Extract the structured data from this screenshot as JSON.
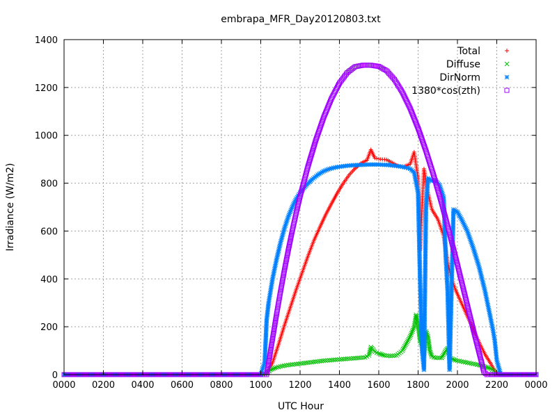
{
  "chart_data": {
    "type": "scatter",
    "title": "embrapa_MFR_Day20120803.txt",
    "xlabel": "UTC Hour",
    "ylabel": "Irradiance (W/m2)",
    "xlim": [
      0,
      24
    ],
    "ylim": [
      0,
      1400
    ],
    "x_ticks": [
      {
        "value": 0,
        "label": "0000"
      },
      {
        "value": 2,
        "label": "0200"
      },
      {
        "value": 4,
        "label": "0400"
      },
      {
        "value": 6,
        "label": "0600"
      },
      {
        "value": 8,
        "label": "0800"
      },
      {
        "value": 10,
        "label": "1000"
      },
      {
        "value": 12,
        "label": "1200"
      },
      {
        "value": 14,
        "label": "1400"
      },
      {
        "value": 16,
        "label": "1600"
      },
      {
        "value": 18,
        "label": "1800"
      },
      {
        "value": 20,
        "label": "2000"
      },
      {
        "value": 22,
        "label": "2200"
      },
      {
        "value": 24,
        "label": "0000"
      }
    ],
    "y_ticks": [
      {
        "value": 0,
        "label": "0"
      },
      {
        "value": 200,
        "label": "200"
      },
      {
        "value": 400,
        "label": "400"
      },
      {
        "value": 600,
        "label": "600"
      },
      {
        "value": 800,
        "label": "800"
      },
      {
        "value": 1000,
        "label": "1000"
      },
      {
        "value": 1200,
        "label": "1200"
      },
      {
        "value": 1400,
        "label": "1400"
      }
    ],
    "grid": true,
    "legend_position": "top-right",
    "series": [
      {
        "name": "Total",
        "marker": "plus",
        "color": "#ff0000",
        "points": [
          [
            0,
            0
          ],
          [
            2,
            0
          ],
          [
            4,
            0
          ],
          [
            6,
            0
          ],
          [
            8,
            0
          ],
          [
            10,
            0
          ],
          [
            10.3,
            5
          ],
          [
            10.6,
            50
          ],
          [
            10.9,
            125
          ],
          [
            11.2,
            205
          ],
          [
            11.5,
            280
          ],
          [
            11.8,
            355
          ],
          [
            12.1,
            425
          ],
          [
            12.4,
            495
          ],
          [
            12.7,
            560
          ],
          [
            13,
            615
          ],
          [
            13.3,
            668
          ],
          [
            13.6,
            715
          ],
          [
            13.9,
            760
          ],
          [
            14.2,
            800
          ],
          [
            14.5,
            835
          ],
          [
            14.8,
            862
          ],
          [
            15.1,
            883
          ],
          [
            15.4,
            896
          ],
          [
            15.6,
            940
          ],
          [
            15.8,
            905
          ],
          [
            16.1,
            900
          ],
          [
            16.4,
            898
          ],
          [
            16.7,
            885
          ],
          [
            17,
            870
          ],
          [
            17.3,
            870
          ],
          [
            17.6,
            880
          ],
          [
            17.8,
            930
          ],
          [
            18,
            820
          ],
          [
            18.1,
            520
          ],
          [
            18.2,
            700
          ],
          [
            18.3,
            860
          ],
          [
            18.5,
            760
          ],
          [
            18.7,
            690
          ],
          [
            19,
            650
          ],
          [
            19.3,
            580
          ],
          [
            19.5,
            470
          ],
          [
            19.7,
            400
          ],
          [
            19.9,
            355
          ],
          [
            20.2,
            300
          ],
          [
            20.5,
            245
          ],
          [
            20.8,
            190
          ],
          [
            21.1,
            135
          ],
          [
            21.4,
            85
          ],
          [
            21.7,
            45
          ],
          [
            21.9,
            15
          ],
          [
            22,
            5
          ],
          [
            22.2,
            0
          ],
          [
            23,
            0
          ],
          [
            24,
            0
          ]
        ]
      },
      {
        "name": "Diffuse",
        "marker": "cross",
        "color": "#00c000",
        "points": [
          [
            0,
            0
          ],
          [
            2,
            0
          ],
          [
            4,
            0
          ],
          [
            6,
            0
          ],
          [
            8,
            0
          ],
          [
            10,
            0
          ],
          [
            10.3,
            5
          ],
          [
            10.5,
            20
          ],
          [
            10.8,
            30
          ],
          [
            11.1,
            36
          ],
          [
            11.4,
            40
          ],
          [
            11.7,
            43
          ],
          [
            12,
            46
          ],
          [
            12.3,
            49
          ],
          [
            12.6,
            52
          ],
          [
            12.9,
            55
          ],
          [
            13.2,
            58
          ],
          [
            13.5,
            60
          ],
          [
            13.8,
            62
          ],
          [
            14.1,
            64
          ],
          [
            14.4,
            66
          ],
          [
            14.7,
            68
          ],
          [
            15,
            70
          ],
          [
            15.3,
            72
          ],
          [
            15.5,
            80
          ],
          [
            15.6,
            115
          ],
          [
            15.8,
            95
          ],
          [
            16,
            88
          ],
          [
            16.3,
            80
          ],
          [
            16.6,
            78
          ],
          [
            16.9,
            80
          ],
          [
            17.2,
            100
          ],
          [
            17.4,
            130
          ],
          [
            17.6,
            160
          ],
          [
            17.8,
            200
          ],
          [
            17.9,
            250
          ],
          [
            18,
            210
          ],
          [
            18.1,
            140
          ],
          [
            18.2,
            120
          ],
          [
            18.3,
            80
          ],
          [
            18.4,
            180
          ],
          [
            18.5,
            160
          ],
          [
            18.6,
            100
          ],
          [
            18.7,
            75
          ],
          [
            18.9,
            70
          ],
          [
            19.2,
            70
          ],
          [
            19.4,
            100
          ],
          [
            19.5,
            110
          ],
          [
            19.6,
            70
          ],
          [
            19.9,
            60
          ],
          [
            20.2,
            55
          ],
          [
            20.5,
            50
          ],
          [
            20.8,
            45
          ],
          [
            21.1,
            40
          ],
          [
            21.4,
            33
          ],
          [
            21.7,
            25
          ],
          [
            21.9,
            12
          ],
          [
            22,
            3
          ],
          [
            22.2,
            0
          ],
          [
            23,
            0
          ],
          [
            24,
            0
          ]
        ]
      },
      {
        "name": "DirNorm",
        "marker": "star",
        "color": "#0080ff",
        "points": [
          [
            0,
            0
          ],
          [
            2,
            0
          ],
          [
            4,
            0
          ],
          [
            6,
            0
          ],
          [
            8,
            0
          ],
          [
            10,
            0
          ],
          [
            10.2,
            50
          ],
          [
            10.3,
            230
          ],
          [
            10.4,
            300
          ],
          [
            10.6,
            400
          ],
          [
            10.8,
            480
          ],
          [
            11,
            550
          ],
          [
            11.2,
            610
          ],
          [
            11.4,
            660
          ],
          [
            11.6,
            700
          ],
          [
            11.8,
            735
          ],
          [
            12,
            760
          ],
          [
            12.3,
            790
          ],
          [
            12.6,
            815
          ],
          [
            12.9,
            835
          ],
          [
            13.2,
            850
          ],
          [
            13.5,
            860
          ],
          [
            13.8,
            866
          ],
          [
            14.1,
            870
          ],
          [
            14.4,
            873
          ],
          [
            14.7,
            875
          ],
          [
            15,
            876
          ],
          [
            15.3,
            877
          ],
          [
            15.6,
            878
          ],
          [
            15.9,
            878
          ],
          [
            16.2,
            877
          ],
          [
            16.5,
            876
          ],
          [
            16.8,
            873
          ],
          [
            17.1,
            870
          ],
          [
            17.4,
            865
          ],
          [
            17.6,
            860
          ],
          [
            17.8,
            845
          ],
          [
            18,
            760
          ],
          [
            18.1,
            400
          ],
          [
            18.2,
            100
          ],
          [
            18.3,
            20
          ],
          [
            18.4,
            690
          ],
          [
            18.5,
            820
          ],
          [
            18.7,
            810
          ],
          [
            18.9,
            810
          ],
          [
            19.1,
            790
          ],
          [
            19.3,
            740
          ],
          [
            19.4,
            500
          ],
          [
            19.5,
            350
          ],
          [
            19.6,
            20
          ],
          [
            19.8,
            690
          ],
          [
            20,
            680
          ],
          [
            20.2,
            650
          ],
          [
            20.5,
            600
          ],
          [
            20.8,
            530
          ],
          [
            21.1,
            450
          ],
          [
            21.4,
            350
          ],
          [
            21.6,
            270
          ],
          [
            21.8,
            190
          ],
          [
            21.9,
            140
          ],
          [
            22,
            60
          ],
          [
            22.2,
            0
          ],
          [
            23,
            0
          ],
          [
            24,
            0
          ]
        ]
      },
      {
        "name": "1380*cos(zth)",
        "marker": "square",
        "color": "#a000ff",
        "points": [
          [
            0,
            0
          ],
          [
            2,
            0
          ],
          [
            4,
            0
          ],
          [
            6,
            0
          ],
          [
            8,
            0
          ],
          [
            10,
            0
          ],
          [
            10.3,
            0
          ],
          [
            10.4,
            50
          ],
          [
            10.6,
            150
          ],
          [
            10.8,
            250
          ],
          [
            11,
            345
          ],
          [
            11.2,
            435
          ],
          [
            11.4,
            520
          ],
          [
            11.6,
            600
          ],
          [
            11.8,
            675
          ],
          [
            12,
            745
          ],
          [
            12.4,
            870
          ],
          [
            12.8,
            980
          ],
          [
            13.2,
            1075
          ],
          [
            13.6,
            1155
          ],
          [
            14,
            1218
          ],
          [
            14.4,
            1262
          ],
          [
            14.8,
            1287
          ],
          [
            15.2,
            1293
          ],
          [
            15.6,
            1293
          ],
          [
            16,
            1288
          ],
          [
            16.4,
            1270
          ],
          [
            16.8,
            1233
          ],
          [
            17.2,
            1180
          ],
          [
            17.6,
            1112
          ],
          [
            18,
            1030
          ],
          [
            18.4,
            935
          ],
          [
            18.8,
            830
          ],
          [
            19.2,
            715
          ],
          [
            19.6,
            590
          ],
          [
            20,
            460
          ],
          [
            20.4,
            325
          ],
          [
            20.8,
            190
          ],
          [
            21.2,
            60
          ],
          [
            21.35,
            10
          ],
          [
            21.5,
            0
          ],
          [
            22,
            0
          ],
          [
            23,
            0
          ],
          [
            24,
            0
          ]
        ]
      }
    ]
  }
}
